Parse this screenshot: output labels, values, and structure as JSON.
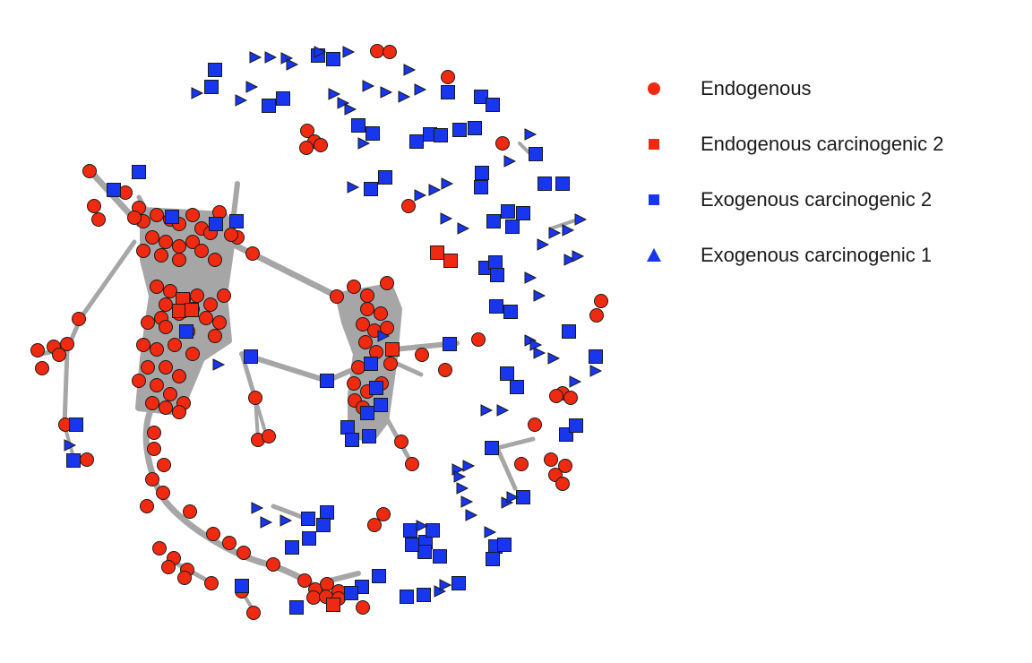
{
  "colors": {
    "endogenous": "#f02a10",
    "exogenous": "#1736ee",
    "edge": "#a6a6a6",
    "outline": "#1a1a1a"
  },
  "legend": [
    {
      "label": "Endogenous",
      "shape": "circle",
      "color": "#f02a10"
    },
    {
      "label": "Endogenous carcinogenic 2",
      "shape": "square",
      "color": "#f02a10"
    },
    {
      "label": "Exogenous carcinogenic 2",
      "shape": "square",
      "color": "#1736ee"
    },
    {
      "label": "Exogenous carcinogenic 1",
      "shape": "triangle",
      "color": "#1736ee"
    }
  ]
}
